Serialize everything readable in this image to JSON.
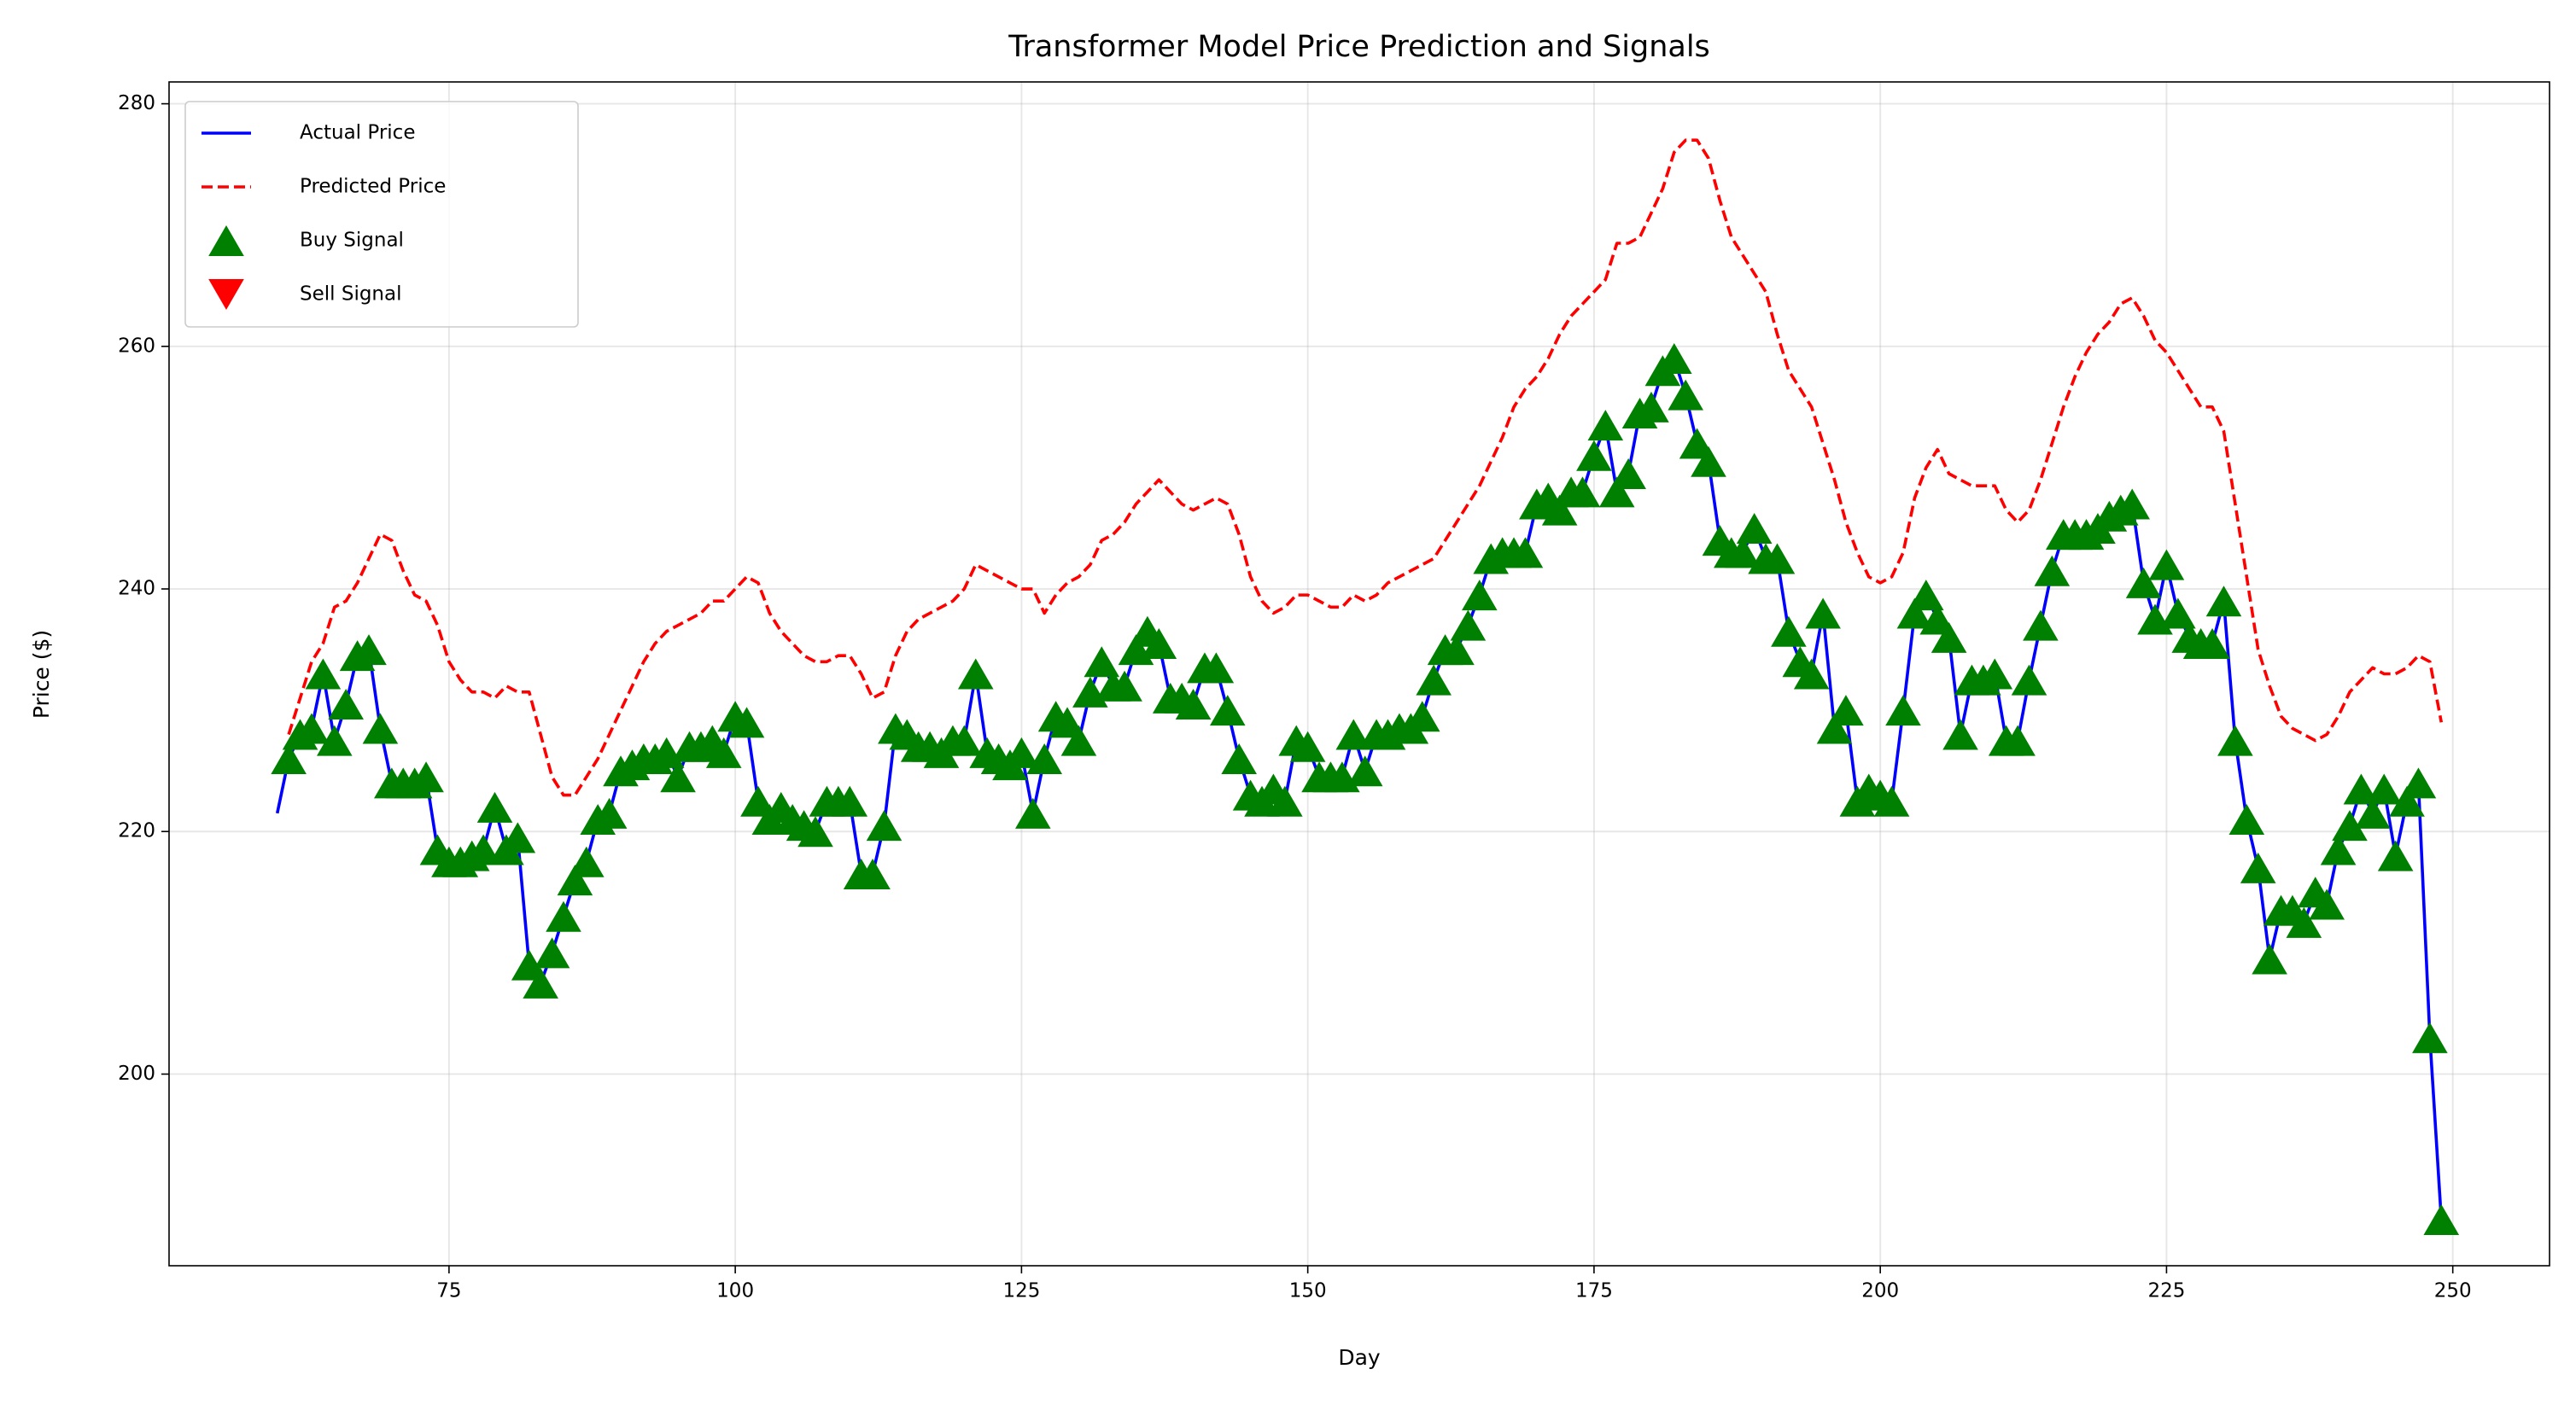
{
  "chart_data": {
    "type": "line",
    "title": "Transformer Model Price Prediction and Signals",
    "xlabel": "Day",
    "ylabel": "Price ($)",
    "xlim": [
      50.55,
      258.45
    ],
    "ylim": [
      184.2,
      281.8
    ],
    "xticks": [
      75,
      100,
      125,
      150,
      175,
      200,
      225,
      250
    ],
    "yticks": [
      200,
      220,
      240,
      260,
      280
    ],
    "grid": true,
    "legend": "upper left",
    "series": [
      {
        "name": "Actual Price",
        "type": "line",
        "color": "#0000ff",
        "dash": "solid",
        "x": [
          60,
          61,
          62,
          63,
          64,
          65,
          66,
          67,
          68,
          69,
          70,
          71,
          72,
          73,
          74,
          75,
          76,
          77,
          78,
          79,
          80,
          81,
          82,
          83,
          84,
          85,
          86,
          87,
          88,
          89,
          90,
          91,
          92,
          93,
          94,
          95,
          96,
          97,
          98,
          99,
          100,
          101,
          102,
          103,
          104,
          105,
          106,
          107,
          108,
          109,
          110,
          111,
          112,
          113,
          114,
          115,
          116,
          117,
          118,
          119,
          120,
          121,
          122,
          123,
          124,
          125,
          126,
          127,
          128,
          129,
          130,
          131,
          132,
          133,
          134,
          135,
          136,
          137,
          138,
          139,
          140,
          141,
          142,
          143,
          144,
          145,
          146,
          147,
          148,
          149,
          150,
          151,
          152,
          153,
          154,
          155,
          156,
          157,
          158,
          159,
          160,
          161,
          162,
          163,
          164,
          165,
          166,
          167,
          168,
          169,
          170,
          171,
          172,
          173,
          174,
          175,
          176,
          177,
          178,
          179,
          180,
          181,
          182,
          183,
          184,
          185,
          186,
          187,
          188,
          189,
          190,
          191,
          192,
          193,
          194,
          195,
          196,
          197,
          198,
          199,
          200,
          201,
          202,
          203,
          204,
          205,
          206,
          207,
          208,
          209,
          210,
          211,
          212,
          213,
          214,
          215,
          216,
          217,
          218,
          219,
          220,
          221,
          222,
          223,
          224,
          225,
          226,
          227,
          228,
          229,
          230,
          231,
          232,
          233,
          234,
          235,
          236,
          237,
          238,
          239,
          240,
          241,
          242,
          243,
          244,
          245,
          246,
          247,
          248,
          249
        ],
        "values": [
          221.5,
          226,
          228,
          228.5,
          233,
          227.5,
          230.5,
          234.5,
          235,
          228.5,
          224,
          224,
          224,
          224.5,
          218.5,
          217.5,
          217.5,
          218,
          218.5,
          222,
          218.5,
          219.5,
          209,
          207.5,
          210,
          213,
          216,
          217.5,
          221,
          221.5,
          225,
          225.5,
          226,
          226,
          226.5,
          224.5,
          227,
          227,
          227.5,
          226.5,
          229.5,
          229,
          222.5,
          221,
          222,
          221,
          220.5,
          220,
          222.5,
          222.5,
          222.5,
          216.5,
          216.5,
          220.5,
          228.5,
          228,
          227,
          227,
          226.5,
          227.5,
          227.5,
          233,
          226.5,
          226,
          225.5,
          226.5,
          221.5,
          226,
          229.5,
          229,
          227.5,
          231.5,
          234,
          232,
          232,
          235,
          236.5,
          235.5,
          231,
          231,
          230.5,
          233.5,
          233.5,
          230,
          226,
          223,
          222.5,
          223.5,
          222.5,
          227.5,
          227,
          224.5,
          224.5,
          224.5,
          228,
          225,
          228,
          228,
          228.5,
          228.5,
          229.5,
          232.5,
          235,
          235,
          237,
          239.5,
          242.5,
          243,
          243,
          243,
          247,
          247.5,
          246.5,
          248,
          248,
          251,
          253.5,
          248,
          249.5,
          254.5,
          255,
          258,
          259,
          256,
          252,
          250.5,
          244,
          243,
          243,
          245,
          242.5,
          242.5,
          236.5,
          234,
          233,
          238,
          228.5,
          230,
          222.5,
          223.5,
          223,
          222.5,
          230,
          238,
          239.5,
          237.5,
          236,
          228,
          232.5,
          232.5,
          233,
          227.5,
          227.5,
          232.5,
          237,
          241.5,
          244.5,
          244.5,
          244.5,
          245,
          246,
          246.5,
          247,
          240.5,
          237.5,
          242,
          238,
          236,
          235.5,
          235.5,
          239,
          227.5,
          221,
          217,
          209.5,
          213.5,
          213.5,
          212.5,
          215,
          214,
          218.5,
          220.5,
          223.5,
          221.5,
          223.5,
          218,
          222.5,
          224,
          203,
          188
        ]
      },
      {
        "name": "Predicted Price",
        "type": "line",
        "color": "#ff0000",
        "dash": "dashed",
        "x": [
          61,
          62,
          63,
          64,
          65,
          66,
          67,
          68,
          69,
          70,
          71,
          72,
          73,
          74,
          75,
          76,
          77,
          78,
          79,
          80,
          81,
          82,
          83,
          84,
          85,
          86,
          87,
          88,
          89,
          90,
          91,
          92,
          93,
          94,
          95,
          96,
          97,
          98,
          99,
          100,
          101,
          102,
          103,
          104,
          105,
          106,
          107,
          108,
          109,
          110,
          111,
          112,
          113,
          114,
          115,
          116,
          117,
          118,
          119,
          120,
          121,
          122,
          123,
          124,
          125,
          126,
          127,
          128,
          129,
          130,
          131,
          132,
          133,
          134,
          135,
          136,
          137,
          138,
          139,
          140,
          141,
          142,
          143,
          144,
          145,
          146,
          147,
          148,
          149,
          150,
          151,
          152,
          153,
          154,
          155,
          156,
          157,
          158,
          159,
          160,
          161,
          162,
          163,
          164,
          165,
          166,
          167,
          168,
          169,
          170,
          171,
          172,
          173,
          174,
          175,
          176,
          177,
          178,
          179,
          180,
          181,
          182,
          183,
          184,
          185,
          186,
          187,
          188,
          189,
          190,
          191,
          192,
          193,
          194,
          195,
          196,
          197,
          198,
          199,
          200,
          201,
          202,
          203,
          204,
          205,
          206,
          207,
          208,
          209,
          210,
          211,
          212,
          213,
          214,
          215,
          216,
          217,
          218,
          219,
          220,
          221,
          222,
          223,
          224,
          225,
          226,
          227,
          228,
          229,
          230,
          231,
          232,
          233,
          234,
          235,
          236,
          237,
          238,
          239,
          240,
          241,
          242,
          243,
          244,
          245,
          246,
          247,
          248,
          249
        ],
        "values": [
          228,
          231,
          234,
          235.5,
          238.5,
          239,
          240.5,
          242.5,
          244.5,
          244,
          241.5,
          239.5,
          239,
          237,
          234,
          232.5,
          231.5,
          231.5,
          231,
          232,
          231.5,
          231.5,
          228,
          224.5,
          223,
          223,
          224.5,
          226,
          228,
          230,
          232,
          234,
          235.5,
          236.5,
          237,
          237.5,
          238,
          239,
          239,
          240,
          241,
          240.5,
          238,
          236.5,
          235.5,
          234.5,
          234,
          234,
          234.5,
          234.5,
          233,
          231,
          231.5,
          234.5,
          236.5,
          237.5,
          238,
          238.5,
          239,
          240,
          242,
          241.5,
          241,
          240.5,
          240,
          240,
          238,
          239.5,
          240.5,
          241,
          242,
          244,
          244.5,
          245.5,
          247,
          248,
          249,
          248,
          247,
          246.5,
          247,
          247.5,
          247,
          244.5,
          241,
          239,
          238,
          238.5,
          239.5,
          239.5,
          239,
          238.5,
          238.5,
          239.5,
          239,
          239.5,
          240.5,
          241,
          241.5,
          242,
          242.5,
          244,
          245.5,
          247,
          248.5,
          250.5,
          252.5,
          255,
          256.5,
          257.5,
          259,
          261,
          262.5,
          263.5,
          264.5,
          265.5,
          268.5,
          268.5,
          269,
          271,
          273,
          276,
          277,
          277,
          275.5,
          272,
          269,
          267.5,
          266,
          264.5,
          261,
          258,
          256.5,
          255,
          252,
          249,
          245.5,
          243,
          241,
          240.5,
          241,
          243,
          247.5,
          250,
          251.5,
          249.5,
          249,
          248.5,
          248.5,
          248.5,
          246.5,
          245.5,
          246.5,
          249,
          252,
          255,
          257.5,
          259.5,
          261,
          262,
          263.5,
          264,
          262.5,
          260.5,
          259.5,
          258,
          256.5,
          255,
          255,
          253,
          247,
          241,
          235,
          232,
          229.5,
          228.5,
          228,
          227.5,
          228,
          229.5,
          231.5,
          232.5,
          233.5,
          233,
          233,
          233.5,
          234.5,
          234,
          229
        ]
      },
      {
        "name": "Buy Signal",
        "type": "scatter",
        "marker": "triangle-up",
        "color": "#008000",
        "x": [
          61,
          62,
          63,
          64,
          65,
          66,
          67,
          68,
          69,
          70,
          71,
          72,
          73,
          74,
          75,
          76,
          77,
          78,
          79,
          80,
          81,
          82,
          83,
          84,
          85,
          86,
          87,
          88,
          89,
          90,
          91,
          92,
          93,
          94,
          95,
          96,
          97,
          98,
          99,
          100,
          101,
          102,
          103,
          104,
          105,
          106,
          107,
          108,
          109,
          110,
          111,
          112,
          113,
          114,
          115,
          116,
          117,
          118,
          119,
          120,
          121,
          122,
          123,
          124,
          125,
          126,
          127,
          128,
          129,
          130,
          131,
          132,
          133,
          134,
          135,
          136,
          137,
          138,
          139,
          140,
          141,
          142,
          143,
          144,
          145,
          146,
          147,
          148,
          149,
          150,
          151,
          152,
          153,
          154,
          155,
          156,
          157,
          158,
          159,
          160,
          161,
          162,
          163,
          164,
          165,
          166,
          167,
          168,
          169,
          170,
          171,
          172,
          173,
          174,
          175,
          176,
          177,
          178,
          179,
          180,
          181,
          182,
          183,
          184,
          185,
          186,
          187,
          188,
          189,
          190,
          191,
          192,
          193,
          194,
          195,
          196,
          197,
          198,
          199,
          200,
          201,
          202,
          203,
          204,
          205,
          206,
          207,
          208,
          209,
          210,
          211,
          212,
          213,
          214,
          215,
          216,
          217,
          218,
          219,
          220,
          221,
          222,
          223,
          224,
          225,
          226,
          227,
          228,
          229,
          230,
          231,
          232,
          233,
          234,
          235,
          236,
          237,
          238,
          239,
          240,
          241,
          242,
          243,
          244,
          245,
          246,
          247,
          248,
          249
        ],
        "values": [
          226,
          228,
          228.5,
          233,
          227.5,
          230.5,
          234.5,
          235,
          228.5,
          224,
          224,
          224,
          224.5,
          218.5,
          217.5,
          217.5,
          218,
          218.5,
          222,
          218.5,
          219.5,
          209,
          207.5,
          210,
          213,
          216,
          217.5,
          221,
          221.5,
          225,
          225.5,
          226,
          226,
          226.5,
          224.5,
          227,
          227,
          227.5,
          226.5,
          229.5,
          229,
          222.5,
          221,
          222,
          221,
          220.5,
          220,
          222.5,
          222.5,
          222.5,
          216.5,
          216.5,
          220.5,
          228.5,
          228,
          227,
          227,
          226.5,
          227.5,
          227.5,
          233,
          226.5,
          226,
          225.5,
          226.5,
          221.5,
          226,
          229.5,
          229,
          227.5,
          231.5,
          234,
          232,
          232,
          235,
          236.5,
          235.5,
          231,
          231,
          230.5,
          233.5,
          233.5,
          230,
          226,
          223,
          222.5,
          223.5,
          222.5,
          227.5,
          227,
          224.5,
          224.5,
          224.5,
          228,
          225,
          228,
          228,
          228.5,
          228.5,
          229.5,
          232.5,
          235,
          235,
          237,
          239.5,
          242.5,
          243,
          243,
          243,
          247,
          247.5,
          246.5,
          248,
          248,
          251,
          253.5,
          248,
          249.5,
          254.5,
          255,
          258,
          259,
          256,
          252,
          250.5,
          244,
          243,
          243,
          245,
          242.5,
          242.5,
          236.5,
          234,
          233,
          238,
          228.5,
          230,
          222.5,
          223.5,
          223,
          222.5,
          230,
          238,
          239.5,
          237.5,
          236,
          228,
          232.5,
          232.5,
          233,
          227.5,
          227.5,
          232.5,
          237,
          241.5,
          244.5,
          244.5,
          244.5,
          245,
          246,
          246.5,
          247,
          240.5,
          237.5,
          242,
          238,
          236,
          235.5,
          235.5,
          239,
          227.5,
          221,
          217,
          209.5,
          213.5,
          213.5,
          212.5,
          215,
          214,
          218.5,
          220.5,
          223.5,
          221.5,
          223.5,
          218,
          222.5,
          224,
          203,
          188
        ]
      },
      {
        "name": "Sell Signal",
        "type": "scatter",
        "marker": "triangle-down",
        "color": "#ff0000",
        "x": [],
        "values": []
      }
    ]
  }
}
